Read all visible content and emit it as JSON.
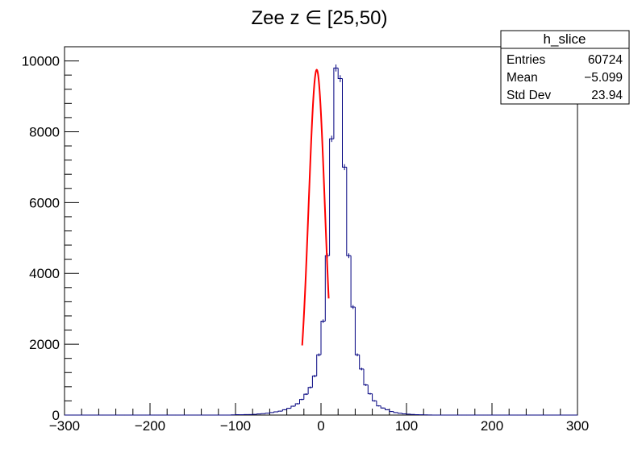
{
  "chart_data": {
    "type": "bar",
    "title": "Zee z ∈ [25,50)",
    "xlabel": "",
    "ylabel": "",
    "xlim": [
      -300,
      300
    ],
    "ylim": [
      0,
      10400
    ],
    "grid": false,
    "histogram": {
      "name": "h_slice",
      "color": "#00007f",
      "bin_low": -300,
      "bin_width": 5,
      "counts": [
        0,
        0,
        0,
        0,
        0,
        0,
        0,
        0,
        0,
        0,
        0,
        0,
        0,
        0,
        0,
        0,
        0,
        0,
        0,
        0,
        0,
        0,
        0,
        0,
        0,
        0,
        0,
        0,
        0,
        0,
        0,
        0,
        0,
        0,
        0,
        0,
        0,
        0,
        0,
        5,
        10,
        10,
        15,
        15,
        20,
        30,
        40,
        55,
        70,
        90,
        110,
        150,
        190,
        250,
        320,
        440,
        590,
        780,
        1100,
        1700,
        2650,
        4500,
        7800,
        9800,
        9500,
        7000,
        4500,
        3050,
        1700,
        1300,
        850,
        600,
        400,
        260,
        200,
        150,
        100,
        70,
        50,
        35,
        25,
        18,
        12,
        8,
        5,
        3,
        0,
        0,
        0,
        0,
        0,
        0,
        0,
        0,
        0,
        0,
        0,
        0,
        0,
        0,
        0,
        0,
        0,
        0,
        0,
        0,
        0,
        0,
        0,
        0,
        0,
        0,
        0,
        0,
        0,
        0,
        0,
        0,
        0,
        0
      ]
    },
    "fit": {
      "type": "gaussian",
      "color": "#ff0000",
      "amplitude": 9750,
      "mean": -5,
      "sigma": 9.5,
      "range": [
        -22,
        9
      ]
    },
    "y_ticks": [
      0,
      2000,
      4000,
      6000,
      8000,
      10000
    ],
    "x_ticks": [
      -300,
      -200,
      -100,
      0,
      100,
      200,
      300
    ],
    "y_tick_labels": [
      "0",
      "2000",
      "4000",
      "6000",
      "8000",
      "10000"
    ],
    "x_tick_labels": [
      "−300",
      "−200",
      "−100",
      "0",
      "100",
      "200",
      "300"
    ],
    "stats_box": {
      "title": "h_slice",
      "rows": [
        {
          "label": "Entries",
          "value": "60724"
        },
        {
          "label": "Mean",
          "value": "−5.099"
        },
        {
          "label": "Std Dev",
          "value": "23.94"
        }
      ]
    }
  }
}
